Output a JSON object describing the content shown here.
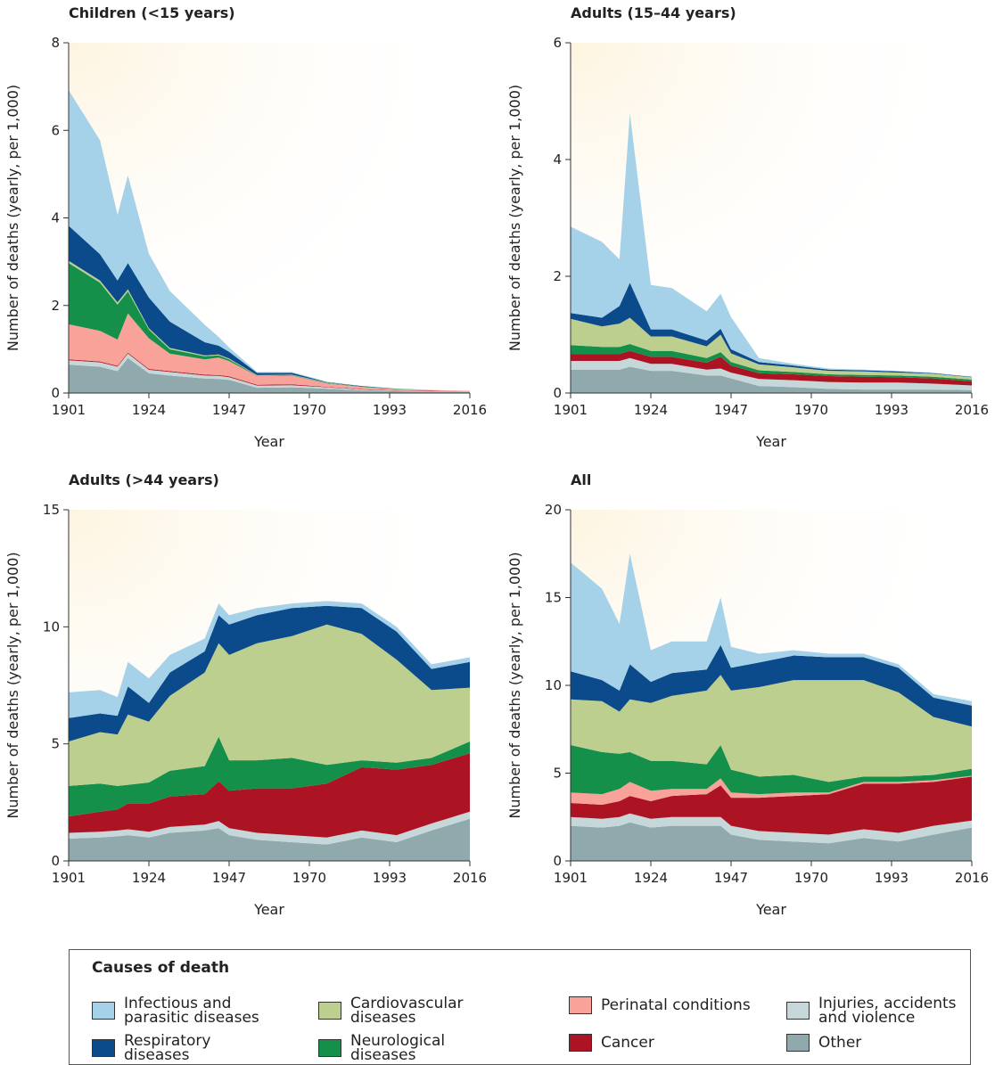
{
  "chart_data": [
    {
      "type": "stacked-area",
      "title": "Children (<15 years)",
      "x_label": "Year",
      "y_label": "Number of deaths (yearly, per 1,000)",
      "legend_title": "Causes of death",
      "x": [
        1901,
        1910,
        1915,
        1918,
        1924,
        1930,
        1940,
        1944,
        1947,
        1955,
        1965,
        1975,
        1985,
        1995,
        2005,
        2016
      ],
      "xlim": [
        1901,
        2016
      ],
      "xticks": [
        1901,
        1924,
        1947,
        1970,
        1993,
        2016
      ],
      "ylim": [
        0,
        8
      ],
      "yticks": [
        0,
        2,
        4,
        6,
        8
      ],
      "series": [
        {
          "name": "Other",
          "color": "#8fa9ad",
          "values": [
            0.65,
            0.6,
            0.5,
            0.8,
            0.45,
            0.4,
            0.33,
            0.32,
            0.3,
            0.12,
            0.13,
            0.1,
            0.06,
            0.04,
            0.03,
            0.02
          ]
        },
        {
          "name": "Injuries, accidents and violence",
          "color": "#c6d7da",
          "values": [
            0.1,
            0.1,
            0.1,
            0.1,
            0.08,
            0.08,
            0.07,
            0.07,
            0.06,
            0.05,
            0.05,
            0.03,
            0.02,
            0.01,
            0.01,
            0.01
          ]
        },
        {
          "name": "Cancer",
          "color": "#ad1423",
          "values": [
            0.02,
            0.02,
            0.02,
            0.02,
            0.02,
            0.02,
            0.02,
            0.02,
            0.02,
            0.02,
            0.02,
            0.01,
            0.01,
            0.01,
            0.01,
            0.005
          ]
        },
        {
          "name": "Perinatal conditions",
          "color": "#f8a29a",
          "values": [
            0.8,
            0.7,
            0.6,
            0.9,
            0.7,
            0.4,
            0.35,
            0.4,
            0.35,
            0.2,
            0.2,
            0.08,
            0.05,
            0.03,
            0.02,
            0.015
          ]
        },
        {
          "name": "Neurological diseases",
          "color": "#14904a",
          "values": [
            1.4,
            1.1,
            0.8,
            0.5,
            0.2,
            0.1,
            0.07,
            0.05,
            0.04,
            0.01,
            0.01,
            0.01,
            0.01,
            0.01,
            0,
            0
          ]
        },
        {
          "name": "Cardiovascular diseases",
          "color": "#bccf8e",
          "values": [
            0.05,
            0.05,
            0.05,
            0.05,
            0.03,
            0.03,
            0.02,
            0.02,
            0.02,
            0.01,
            0.01,
            0.01,
            0,
            0,
            0,
            0
          ]
        },
        {
          "name": "Respiratory diseases",
          "color": "#0b4a8b",
          "values": [
            0.8,
            0.6,
            0.5,
            0.6,
            0.7,
            0.6,
            0.3,
            0.2,
            0.15,
            0.05,
            0.04,
            0.01,
            0.01,
            0,
            0,
            0
          ]
        },
        {
          "name": "Infectious and parasitic diseases",
          "color": "#a6d2e9",
          "values": [
            3.1,
            2.6,
            1.5,
            2.0,
            1.0,
            0.7,
            0.4,
            0.2,
            0.1,
            0.02,
            0.02,
            0.01,
            0,
            0,
            0,
            0
          ]
        }
      ]
    },
    {
      "type": "stacked-area",
      "title": "Adults (15–44 years)",
      "x_label": "Year",
      "y_label": "Number of deaths (yearly, per 1,000)",
      "x": [
        1901,
        1910,
        1915,
        1918,
        1924,
        1930,
        1940,
        1944,
        1947,
        1955,
        1965,
        1975,
        1985,
        1995,
        2005,
        2016
      ],
      "xlim": [
        1901,
        2016
      ],
      "xticks": [
        1901,
        1924,
        1947,
        1970,
        1993,
        2016
      ],
      "ylim": [
        0,
        6
      ],
      "yticks": [
        0,
        2,
        4,
        6
      ],
      "series": [
        {
          "name": "Other",
          "color": "#8fa9ad",
          "values": [
            0.4,
            0.4,
            0.4,
            0.45,
            0.38,
            0.38,
            0.3,
            0.3,
            0.25,
            0.12,
            0.1,
            0.07,
            0.06,
            0.06,
            0.06,
            0.05
          ]
        },
        {
          "name": "Injuries, accidents and violence",
          "color": "#c6d7da",
          "values": [
            0.15,
            0.15,
            0.15,
            0.15,
            0.12,
            0.12,
            0.1,
            0.12,
            0.1,
            0.12,
            0.12,
            0.12,
            0.12,
            0.12,
            0.1,
            0.08
          ]
        },
        {
          "name": "Cancer",
          "color": "#ad1423",
          "values": [
            0.12,
            0.12,
            0.12,
            0.12,
            0.12,
            0.12,
            0.12,
            0.2,
            0.12,
            0.1,
            0.1,
            0.1,
            0.1,
            0.09,
            0.09,
            0.07
          ]
        },
        {
          "name": "Perinatal conditions",
          "color": "#f8a29a",
          "values": [
            0,
            0,
            0,
            0,
            0,
            0,
            0,
            0,
            0,
            0,
            0,
            0,
            0,
            0,
            0,
            0
          ]
        },
        {
          "name": "Neurological diseases",
          "color": "#14904a",
          "values": [
            0.15,
            0.12,
            0.12,
            0.12,
            0.1,
            0.1,
            0.08,
            0.08,
            0.06,
            0.05,
            0.04,
            0.03,
            0.03,
            0.03,
            0.03,
            0.03
          ]
        },
        {
          "name": "Cardiovascular diseases",
          "color": "#bccf8e",
          "values": [
            0.45,
            0.35,
            0.4,
            0.45,
            0.25,
            0.25,
            0.2,
            0.3,
            0.15,
            0.1,
            0.08,
            0.06,
            0.06,
            0.05,
            0.05,
            0.04
          ]
        },
        {
          "name": "Respiratory diseases",
          "color": "#0b4a8b",
          "values": [
            0.1,
            0.15,
            0.3,
            0.6,
            0.12,
            0.12,
            0.1,
            0.1,
            0.07,
            0.04,
            0.03,
            0.02,
            0.02,
            0.02,
            0.01,
            0.01
          ]
        },
        {
          "name": "Infectious and parasitic diseases",
          "color": "#a6d2e9",
          "values": [
            1.48,
            1.3,
            0.8,
            2.9,
            0.76,
            0.71,
            0.5,
            0.6,
            0.55,
            0.07,
            0.03,
            0.02,
            0.01,
            0.01,
            0.01,
            0
          ]
        }
      ]
    },
    {
      "type": "stacked-area",
      "title": "Adults (>44 years)",
      "x_label": "Year",
      "y_label": "Number of deaths (yearly, per 1,000)",
      "x": [
        1901,
        1910,
        1915,
        1918,
        1924,
        1930,
        1940,
        1944,
        1947,
        1955,
        1965,
        1975,
        1985,
        1995,
        2005,
        2016
      ],
      "xlim": [
        1901,
        2016
      ],
      "xticks": [
        1901,
        1924,
        1947,
        1970,
        1993,
        2016
      ],
      "ylim": [
        0,
        15
      ],
      "yticks": [
        0,
        5,
        10,
        15
      ],
      "series": [
        {
          "name": "Other",
          "color": "#8fa9ad",
          "values": [
            0.95,
            1.0,
            1.05,
            1.1,
            1.0,
            1.2,
            1.3,
            1.4,
            1.1,
            0.9,
            0.8,
            0.7,
            1.0,
            0.8,
            1.3,
            1.8
          ]
        },
        {
          "name": "Injuries, accidents and violence",
          "color": "#c6d7da",
          "values": [
            0.25,
            0.25,
            0.25,
            0.25,
            0.25,
            0.25,
            0.25,
            0.3,
            0.3,
            0.3,
            0.3,
            0.3,
            0.3,
            0.3,
            0.3,
            0.3
          ]
        },
        {
          "name": "Cancer",
          "color": "#ad1423",
          "values": [
            0.7,
            0.85,
            0.9,
            1.1,
            1.2,
            1.3,
            1.3,
            1.7,
            1.6,
            1.9,
            2.0,
            2.3,
            2.7,
            2.8,
            2.5,
            2.5
          ]
        },
        {
          "name": "Perinatal conditions",
          "color": "#f8a29a",
          "values": [
            0,
            0,
            0,
            0,
            0,
            0,
            0,
            0,
            0,
            0,
            0,
            0,
            0,
            0,
            0,
            0
          ]
        },
        {
          "name": "Neurological diseases",
          "color": "#14904a",
          "values": [
            1.3,
            1.2,
            1.0,
            0.8,
            0.9,
            1.1,
            1.2,
            1.9,
            1.3,
            1.2,
            1.3,
            0.8,
            0.3,
            0.3,
            0.3,
            0.5
          ]
        },
        {
          "name": "Cardiovascular diseases",
          "color": "#bccf8e",
          "values": [
            1.9,
            2.2,
            2.2,
            3.0,
            2.6,
            3.2,
            4.0,
            4.0,
            4.5,
            5.0,
            5.2,
            6.0,
            5.4,
            4.4,
            2.9,
            2.3
          ]
        },
        {
          "name": "Respiratory diseases",
          "color": "#0b4a8b",
          "values": [
            1.0,
            0.8,
            0.8,
            1.2,
            0.8,
            1.0,
            0.9,
            1.2,
            1.3,
            1.2,
            1.2,
            0.8,
            1.1,
            1.2,
            0.9,
            1.1
          ]
        },
        {
          "name": "Infectious and parasitic diseases",
          "color": "#a6d2e9",
          "values": [
            1.1,
            1.0,
            0.8,
            1.05,
            1.05,
            0.75,
            0.55,
            0.5,
            0.4,
            0.3,
            0.2,
            0.2,
            0.2,
            0.2,
            0.2,
            0.2
          ]
        }
      ]
    },
    {
      "type": "stacked-area",
      "title": "All",
      "x_label": "Year",
      "y_label": "Number of deaths (yearly, per 1,000)",
      "x": [
        1901,
        1910,
        1915,
        1918,
        1924,
        1930,
        1940,
        1944,
        1947,
        1955,
        1965,
        1975,
        1985,
        1995,
        2005,
        2016
      ],
      "xlim": [
        1901,
        2016
      ],
      "xticks": [
        1901,
        1924,
        1947,
        1970,
        1993,
        2016
      ],
      "ylim": [
        0,
        20
      ],
      "yticks": [
        0,
        5,
        10,
        15,
        20
      ],
      "series": [
        {
          "name": "Other",
          "color": "#8fa9ad",
          "values": [
            2.0,
            1.9,
            2.0,
            2.2,
            1.9,
            2.0,
            2.0,
            2.0,
            1.5,
            1.2,
            1.1,
            1.0,
            1.3,
            1.1,
            1.5,
            1.9
          ]
        },
        {
          "name": "Injuries, accidents and violence",
          "color": "#c6d7da",
          "values": [
            0.5,
            0.5,
            0.5,
            0.5,
            0.5,
            0.5,
            0.5,
            0.5,
            0.5,
            0.5,
            0.5,
            0.5,
            0.5,
            0.5,
            0.5,
            0.4
          ]
        },
        {
          "name": "Cancer",
          "color": "#ad1423",
          "values": [
            0.8,
            0.8,
            0.9,
            1.0,
            1.0,
            1.2,
            1.3,
            1.8,
            1.6,
            1.9,
            2.1,
            2.3,
            2.6,
            2.8,
            2.5,
            2.5
          ]
        },
        {
          "name": "Perinatal conditions",
          "color": "#f8a29a",
          "values": [
            0.6,
            0.6,
            0.7,
            0.8,
            0.6,
            0.4,
            0.3,
            0.4,
            0.3,
            0.2,
            0.2,
            0.1,
            0.1,
            0.1,
            0.1,
            0.05
          ]
        },
        {
          "name": "Neurological diseases",
          "color": "#14904a",
          "values": [
            2.7,
            2.4,
            2.0,
            1.7,
            1.7,
            1.6,
            1.4,
            1.9,
            1.3,
            1.0,
            1.0,
            0.6,
            0.3,
            0.3,
            0.3,
            0.4
          ]
        },
        {
          "name": "Cardiovascular diseases",
          "color": "#bccf8e",
          "values": [
            2.6,
            2.9,
            2.4,
            3.0,
            3.3,
            3.7,
            4.2,
            4.0,
            4.5,
            5.1,
            5.4,
            5.8,
            5.5,
            4.8,
            3.3,
            2.4
          ]
        },
        {
          "name": "Respiratory diseases",
          "color": "#0b4a8b",
          "values": [
            1.6,
            1.2,
            1.2,
            2.0,
            1.2,
            1.3,
            1.2,
            1.7,
            1.3,
            1.4,
            1.4,
            1.3,
            1.3,
            1.4,
            1.1,
            1.2
          ]
        },
        {
          "name": "Infectious and parasitic diseases",
          "color": "#a6d2e9",
          "values": [
            6.2,
            5.2,
            3.8,
            6.3,
            1.8,
            1.8,
            1.6,
            2.7,
            1.2,
            0.5,
            0.3,
            0.2,
            0.2,
            0.2,
            0.2,
            0.25
          ]
        }
      ]
    }
  ]
}
